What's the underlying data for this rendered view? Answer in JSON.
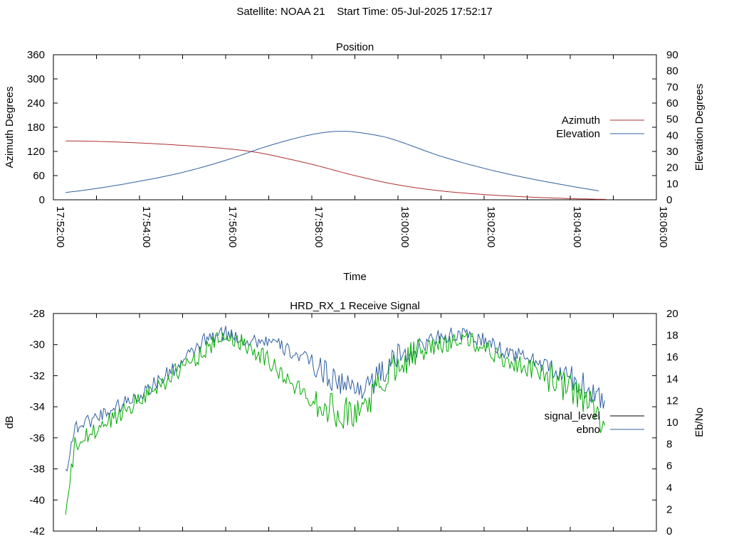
{
  "header": {
    "satellite_label": "Satellite: NOAA 21",
    "start_label": "Start Time: 05-Jul-2025 17:52:17"
  },
  "chart_data": [
    {
      "type": "line",
      "title": "Position",
      "xlabel": "Time",
      "ylabel_left": "Azimuth Degrees",
      "ylabel_right": "Elevation Degrees",
      "x_ticks": [
        "17:52:00",
        "17:54:00",
        "17:56:00",
        "17:58:00",
        "18:00:00",
        "18:02:00",
        "18:04:00",
        "18:06:00"
      ],
      "x_range": [
        "17:52:00",
        "18:06:00"
      ],
      "ylim_left": [
        0,
        360
      ],
      "ylim_right": [
        0,
        90
      ],
      "y_ticks_left": [
        0,
        60,
        120,
        180,
        240,
        300,
        360
      ],
      "y_ticks_right": [
        0,
        10,
        20,
        30,
        40,
        50,
        60,
        70,
        80,
        90
      ],
      "grid": false,
      "legend_position": "right",
      "series": [
        {
          "name": "Azimuth",
          "axis": "left",
          "color": "#b03030",
          "x": [
            "17:52:17",
            "17:53:00",
            "17:54:00",
            "17:55:00",
            "17:56:00",
            "17:56:30",
            "17:57:00",
            "17:58:00",
            "17:59:00",
            "18:00:00",
            "18:01:00",
            "18:02:00",
            "18:03:00",
            "18:04:00",
            "18:04:50"
          ],
          "values": [
            146,
            145,
            141,
            135,
            127,
            121,
            112,
            88,
            60,
            37,
            22,
            13,
            7,
            3,
            1
          ]
        },
        {
          "name": "Elevation",
          "axis": "right",
          "color": "#3060a0",
          "x": [
            "17:52:17",
            "17:53:00",
            "17:54:00",
            "17:55:00",
            "17:56:00",
            "17:57:00",
            "17:58:00",
            "17:58:45",
            "17:59:30",
            "18:00:00",
            "18:01:00",
            "18:02:00",
            "18:03:00",
            "18:04:00",
            "18:04:40"
          ],
          "values": [
            4.5,
            7,
            11.5,
            17,
            24.5,
            33.5,
            40.5,
            42.5,
            40,
            36.5,
            27,
            19.5,
            13.5,
            8.5,
            5.5
          ]
        }
      ]
    },
    {
      "type": "line",
      "title": "HRD_RX_1 Receive Signal",
      "ylabel_left": "dB",
      "ylabel_right": "Eb/No",
      "ylim_left": [
        -42,
        -28
      ],
      "ylim_right": [
        0,
        20
      ],
      "y_ticks_left": [
        -42,
        -40,
        -38,
        -36,
        -34,
        -32,
        -30,
        -28
      ],
      "y_ticks_right": [
        0,
        2,
        4,
        6,
        8,
        10,
        12,
        14,
        16,
        18,
        20
      ],
      "grid": false,
      "legend_position": "right",
      "series": [
        {
          "name": "signal_level",
          "axis": "left",
          "color": "#000000",
          "x": [],
          "values": []
        },
        {
          "name": "ebno",
          "axis": "right",
          "color": "#3060a0",
          "x": [
            "17:52:17",
            "17:52:30",
            "17:53:00",
            "17:54:00",
            "17:55:00",
            "17:55:30",
            "17:56:00",
            "17:56:30",
            "17:57:00",
            "17:57:30",
            "17:58:00",
            "17:58:30",
            "17:59:00",
            "17:59:30",
            "18:00:00",
            "18:00:30",
            "18:01:00",
            "18:01:30",
            "18:02:00",
            "18:02:30",
            "18:03:00",
            "18:03:30",
            "18:04:00",
            "18:04:30",
            "18:04:48"
          ],
          "values": [
            5.5,
            9.5,
            10.5,
            12.5,
            15.5,
            17.5,
            18.2,
            17.5,
            17.5,
            16.5,
            15.5,
            14,
            13,
            14,
            16,
            17,
            18,
            18,
            17.5,
            16.5,
            16,
            15,
            14,
            13,
            12
          ]
        },
        {
          "name": "",
          "axis": "left",
          "color": "#00aa00",
          "x": [
            "17:52:17",
            "17:52:30",
            "17:53:00",
            "17:54:00",
            "17:55:00",
            "17:55:30",
            "17:56:00",
            "17:56:30",
            "17:57:00",
            "17:57:30",
            "17:58:00",
            "17:58:30",
            "17:59:00",
            "17:59:30",
            "18:00:00",
            "18:00:30",
            "18:01:00",
            "18:01:30",
            "18:02:00",
            "18:02:30",
            "18:03:00",
            "18:03:30",
            "18:04:00",
            "18:04:30",
            "18:04:48"
          ],
          "values": [
            -41,
            -36.5,
            -35.5,
            -33.5,
            -31.5,
            -30.4,
            -29.4,
            -30,
            -31,
            -32.5,
            -33.5,
            -34.2,
            -34.5,
            -33,
            -31,
            -30.5,
            -30,
            -29.6,
            -30.2,
            -31,
            -31.5,
            -32,
            -33,
            -34,
            -35.2
          ]
        }
      ]
    }
  ]
}
